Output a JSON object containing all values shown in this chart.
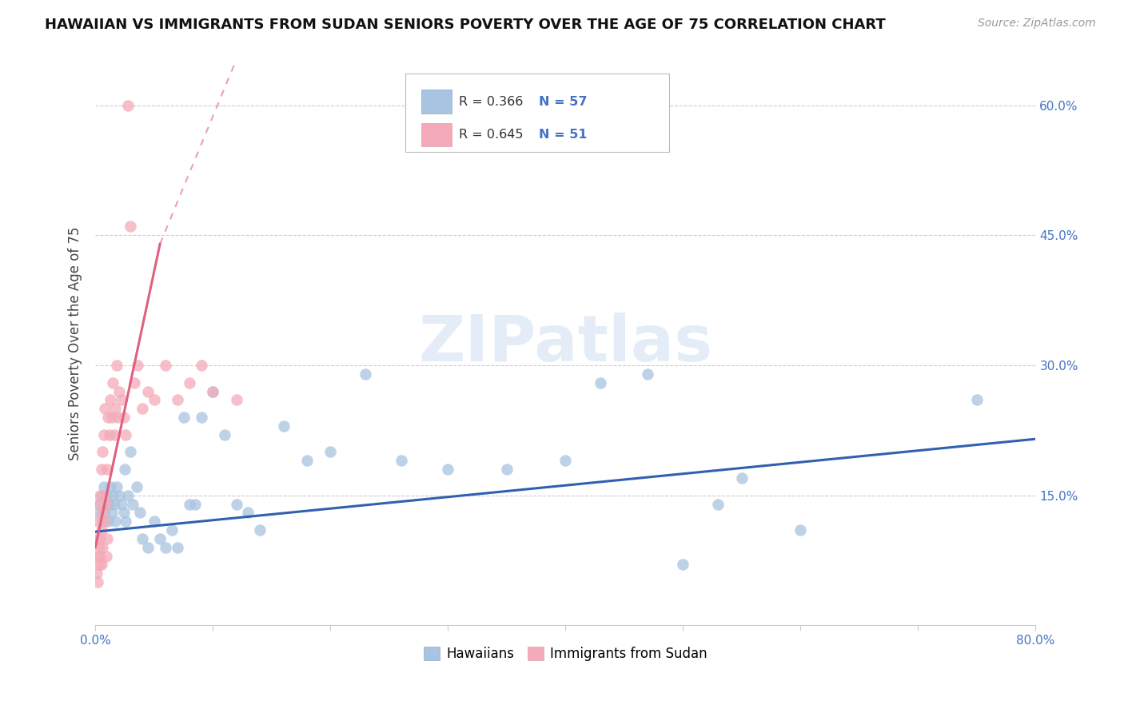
{
  "title": "HAWAIIAN VS IMMIGRANTS FROM SUDAN SENIORS POVERTY OVER THE AGE OF 75 CORRELATION CHART",
  "source": "Source: ZipAtlas.com",
  "ylabel": "Seniors Poverty Over the Age of 75",
  "xlim": [
    0.0,
    0.8
  ],
  "ylim": [
    0.0,
    0.65
  ],
  "yticks": [
    0.15,
    0.3,
    0.45,
    0.6
  ],
  "xtick_positions": [
    0.0,
    0.1,
    0.2,
    0.3,
    0.4,
    0.5,
    0.6,
    0.7,
    0.8
  ],
  "xtick_labels_show": [
    "0.0%",
    "",
    "",
    "",
    "",
    "",
    "",
    "",
    "80.0%"
  ],
  "blue_color": "#a8c4e0",
  "pink_color": "#f4aab8",
  "blue_line_color": "#3060b0",
  "pink_line_color": "#e06080",
  "legend_blue_r": "R = 0.366",
  "legend_blue_n": "N = 57",
  "legend_pink_r": "R = 0.645",
  "legend_pink_n": "N = 51",
  "watermark": "ZIPatlas",
  "hawaiians_x": [
    0.003,
    0.004,
    0.005,
    0.006,
    0.007,
    0.008,
    0.009,
    0.01,
    0.011,
    0.012,
    0.013,
    0.014,
    0.015,
    0.016,
    0.017,
    0.018,
    0.02,
    0.022,
    0.024,
    0.025,
    0.026,
    0.028,
    0.03,
    0.032,
    0.035,
    0.038,
    0.04,
    0.045,
    0.05,
    0.055,
    0.06,
    0.065,
    0.07,
    0.075,
    0.08,
    0.085,
    0.09,
    0.1,
    0.11,
    0.12,
    0.13,
    0.14,
    0.16,
    0.18,
    0.2,
    0.23,
    0.26,
    0.3,
    0.35,
    0.4,
    0.43,
    0.47,
    0.5,
    0.53,
    0.55,
    0.6,
    0.75
  ],
  "hawaiians_y": [
    0.14,
    0.13,
    0.15,
    0.12,
    0.16,
    0.13,
    0.14,
    0.15,
    0.12,
    0.14,
    0.16,
    0.13,
    0.15,
    0.14,
    0.12,
    0.16,
    0.15,
    0.14,
    0.13,
    0.18,
    0.12,
    0.15,
    0.2,
    0.14,
    0.16,
    0.13,
    0.1,
    0.09,
    0.12,
    0.1,
    0.09,
    0.11,
    0.09,
    0.24,
    0.14,
    0.14,
    0.24,
    0.27,
    0.22,
    0.14,
    0.13,
    0.11,
    0.23,
    0.19,
    0.2,
    0.29,
    0.19,
    0.18,
    0.18,
    0.19,
    0.28,
    0.29,
    0.07,
    0.14,
    0.17,
    0.11,
    0.26
  ],
  "sudan_x": [
    0.001,
    0.001,
    0.002,
    0.002,
    0.002,
    0.003,
    0.003,
    0.003,
    0.004,
    0.004,
    0.004,
    0.005,
    0.005,
    0.005,
    0.006,
    0.006,
    0.006,
    0.007,
    0.007,
    0.008,
    0.008,
    0.009,
    0.009,
    0.01,
    0.01,
    0.011,
    0.012,
    0.013,
    0.014,
    0.015,
    0.016,
    0.017,
    0.018,
    0.019,
    0.02,
    0.022,
    0.024,
    0.026,
    0.028,
    0.03,
    0.033,
    0.036,
    0.04,
    0.045,
    0.05,
    0.06,
    0.07,
    0.08,
    0.09,
    0.1,
    0.12
  ],
  "sudan_y": [
    0.1,
    0.06,
    0.08,
    0.05,
    0.12,
    0.09,
    0.14,
    0.07,
    0.1,
    0.15,
    0.08,
    0.11,
    0.18,
    0.07,
    0.13,
    0.2,
    0.09,
    0.15,
    0.22,
    0.12,
    0.25,
    0.08,
    0.14,
    0.18,
    0.1,
    0.24,
    0.22,
    0.26,
    0.24,
    0.28,
    0.22,
    0.25,
    0.3,
    0.24,
    0.27,
    0.26,
    0.24,
    0.22,
    0.6,
    0.46,
    0.28,
    0.3,
    0.25,
    0.27,
    0.26,
    0.3,
    0.26,
    0.28,
    0.3,
    0.27,
    0.26
  ],
  "blue_trend": [
    0.0,
    0.8,
    0.108,
    0.215
  ],
  "pink_trend_solid": [
    0.0,
    0.055,
    0.09,
    0.44
  ],
  "pink_trend_dashed": [
    0.055,
    0.22,
    0.44,
    0.98
  ],
  "bg_color": "#ffffff",
  "grid_color": "#cccccc",
  "tick_color": "#4472c4",
  "title_fontsize": 13,
  "source_fontsize": 10,
  "ylabel_fontsize": 12,
  "tick_fontsize": 11
}
